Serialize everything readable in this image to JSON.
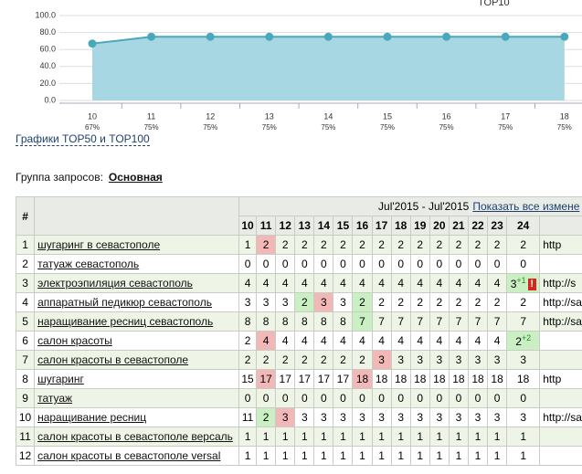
{
  "chart": {
    "type": "line",
    "title": "TOP10",
    "categories": [
      "10",
      "11",
      "12",
      "13",
      "14",
      "15",
      "16",
      "17",
      "18"
    ],
    "values": [
      67,
      75,
      75,
      75,
      75,
      75,
      75,
      75,
      75
    ],
    "value_labels": [
      "67%",
      "75%",
      "75%",
      "75%",
      "75%",
      "75%",
      "75%",
      "75%",
      "75%"
    ],
    "ylim": [
      0,
      100
    ],
    "yticks": [
      {
        "value": 0,
        "label": "0.0"
      },
      {
        "value": 20,
        "label": "20.0"
      },
      {
        "value": 40,
        "label": "40.0"
      },
      {
        "value": 60,
        "label": "60.0"
      },
      {
        "value": 80,
        "label": "80.0"
      },
      {
        "value": 100,
        "label": "100.0"
      }
    ],
    "grid": true,
    "color": "#4aa8bd",
    "fill": "#a6d7e2"
  },
  "link": "Графики TOP50 и TOP100",
  "group": {
    "label": "Группа запросов:",
    "value": "Основная"
  },
  "table": {
    "hash": "#",
    "period": "Jul'2015 - Jul'2015",
    "show_all": "Показать все измене",
    "days": [
      "10",
      "11",
      "12",
      "13",
      "14",
      "15",
      "16",
      "17",
      "18",
      "19",
      "20",
      "21",
      "22",
      "23",
      "24"
    ],
    "rows": [
      {
        "num": 1,
        "query": "шугаринг в севастополе",
        "positions": [
          1,
          2,
          2,
          2,
          2,
          2,
          2,
          2,
          2,
          2,
          2,
          2,
          2,
          2,
          2
        ],
        "marks": [
          null,
          "down",
          null,
          null,
          null,
          null,
          null,
          null,
          null,
          null,
          null,
          null,
          null,
          null,
          null
        ],
        "url": "http"
      },
      {
        "num": 2,
        "query": "татуаж севастополь",
        "positions": [
          0,
          0,
          0,
          0,
          0,
          0,
          0,
          0,
          0,
          0,
          0,
          0,
          0,
          0,
          0
        ]
      },
      {
        "num": 3,
        "query": "электроэпиляция севастополь",
        "positions": [
          4,
          4,
          4,
          4,
          4,
          4,
          4,
          4,
          4,
          4,
          4,
          4,
          4,
          4,
          3
        ],
        "marks": [
          null,
          null,
          null,
          null,
          null,
          null,
          null,
          null,
          null,
          null,
          null,
          null,
          null,
          null,
          "up"
        ],
        "delta": "+1",
        "alert": "!",
        "url": "http://s"
      },
      {
        "num": 4,
        "query": "аппаратный педикюр севастополь",
        "positions": [
          3,
          3,
          3,
          2,
          3,
          3,
          2,
          2,
          2,
          2,
          2,
          2,
          2,
          2,
          2
        ],
        "marks": [
          null,
          null,
          null,
          "up",
          "down",
          null,
          "up",
          null,
          null,
          null,
          null,
          null,
          null,
          null,
          null
        ],
        "url": "http://sa"
      },
      {
        "num": 5,
        "query": "наращивание ресниц севастополь",
        "positions": [
          8,
          8,
          8,
          8,
          8,
          8,
          7,
          7,
          7,
          7,
          7,
          7,
          7,
          7,
          7
        ],
        "marks": [
          null,
          null,
          null,
          null,
          null,
          null,
          "up",
          null,
          null,
          null,
          null,
          null,
          null,
          null,
          null
        ],
        "url": "http://sal"
      },
      {
        "num": 6,
        "query": "салон красоты",
        "positions": [
          2,
          4,
          4,
          4,
          4,
          4,
          4,
          4,
          4,
          4,
          4,
          4,
          4,
          4,
          2
        ],
        "marks": [
          null,
          "down",
          null,
          null,
          null,
          null,
          null,
          null,
          null,
          null,
          null,
          null,
          null,
          null,
          "up"
        ],
        "delta": "+2"
      },
      {
        "num": 7,
        "query": "салон красоты в севастополе",
        "positions": [
          2,
          2,
          2,
          2,
          2,
          2,
          2,
          3,
          3,
          3,
          3,
          3,
          3,
          3,
          3
        ],
        "marks": [
          null,
          null,
          null,
          null,
          null,
          null,
          null,
          "down",
          null,
          null,
          null,
          null,
          null,
          null,
          null
        ]
      },
      {
        "num": 8,
        "query": "шугаринг",
        "positions": [
          15,
          17,
          17,
          17,
          17,
          17,
          18,
          18,
          18,
          18,
          18,
          18,
          18,
          18,
          18
        ],
        "marks": [
          null,
          "down",
          null,
          null,
          null,
          null,
          "down",
          null,
          null,
          null,
          null,
          null,
          null,
          null,
          null
        ],
        "url": "http"
      },
      {
        "num": 9,
        "query": "татуаж",
        "positions": [
          0,
          0,
          0,
          0,
          0,
          0,
          0,
          0,
          0,
          0,
          0,
          0,
          0,
          0,
          0
        ]
      },
      {
        "num": 10,
        "query": "наращивание ресниц",
        "positions": [
          11,
          2,
          3,
          3,
          3,
          3,
          3,
          3,
          3,
          3,
          3,
          3,
          3,
          3,
          3
        ],
        "marks": [
          null,
          "up",
          "down",
          null,
          null,
          null,
          null,
          null,
          null,
          null,
          null,
          null,
          null,
          null,
          null
        ],
        "url": "http://sal"
      },
      {
        "num": 11,
        "query": "салон красоты в севастополе версаль",
        "positions": [
          1,
          1,
          1,
          1,
          1,
          1,
          1,
          1,
          1,
          1,
          1,
          1,
          1,
          1,
          1
        ]
      },
      {
        "num": 12,
        "query": "салон красоты в севастополе versal",
        "positions": [
          1,
          1,
          1,
          1,
          1,
          1,
          1,
          1,
          1,
          1,
          1,
          1,
          1,
          1,
          1
        ]
      }
    ]
  }
}
